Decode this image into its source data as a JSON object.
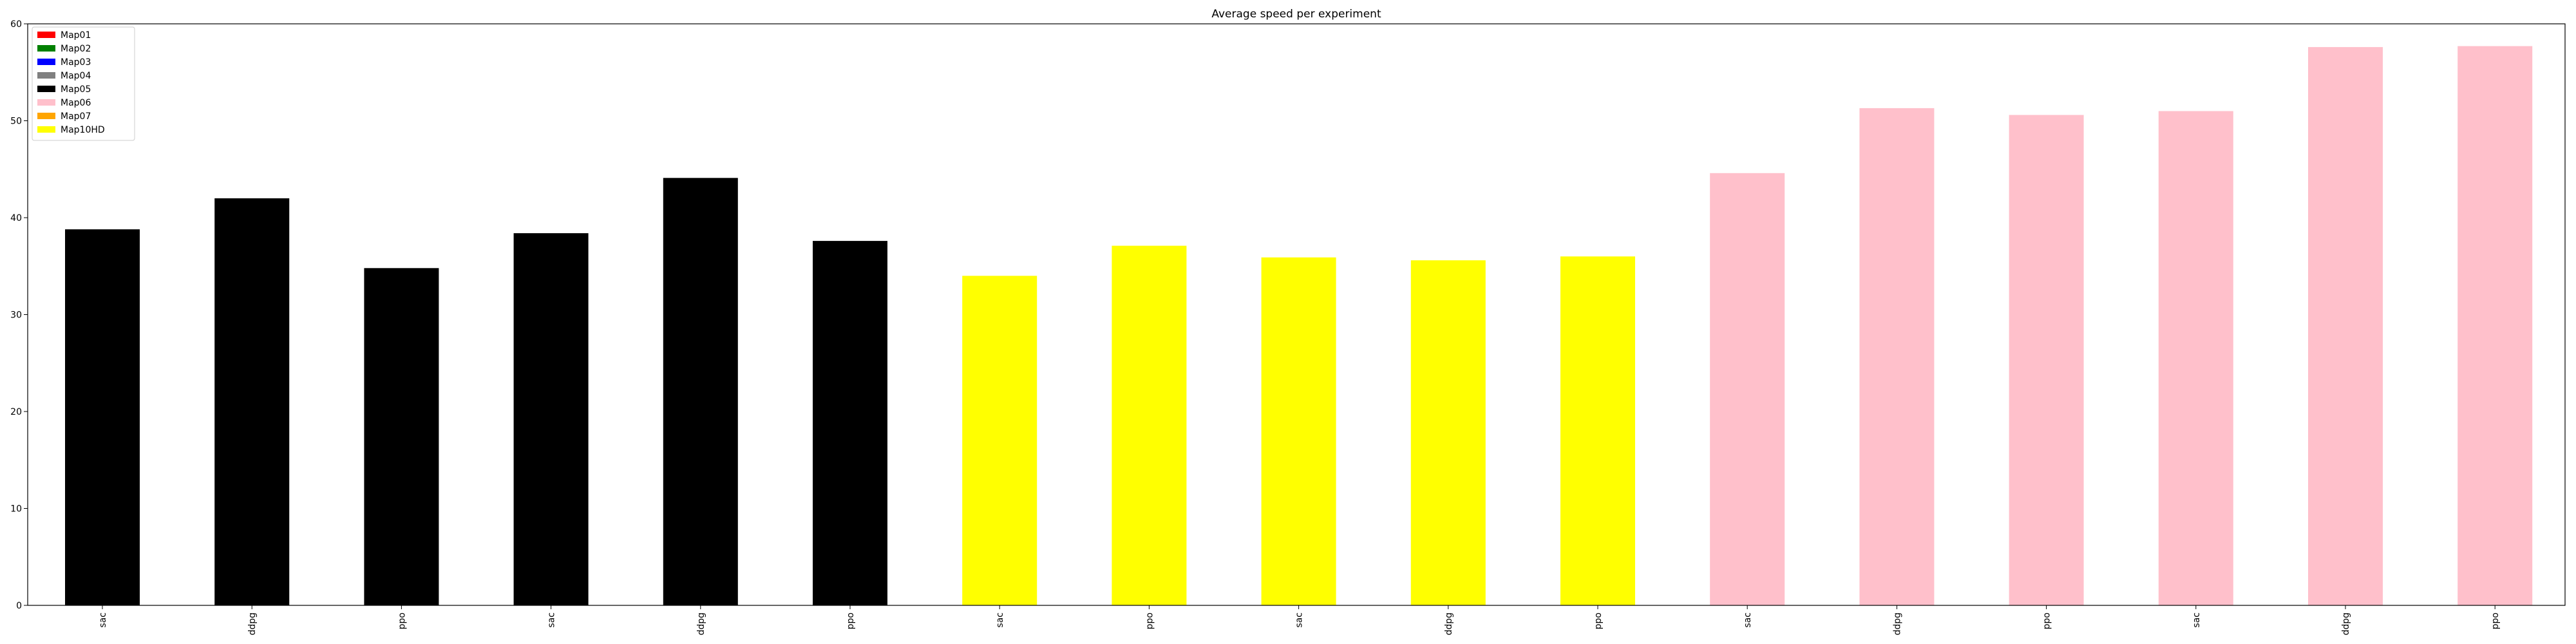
{
  "chart_data": {
    "type": "bar",
    "title": "Average speed per experiment",
    "xlabel": "",
    "ylabel": "",
    "ylim": [
      0,
      60
    ],
    "yticks": [
      0,
      10,
      20,
      30,
      40,
      50,
      60
    ],
    "grid": false,
    "legend_position": "top-left",
    "legend": [
      {
        "label": "Map01",
        "color": "#ff0000"
      },
      {
        "label": "Map02",
        "color": "#008000"
      },
      {
        "label": "Map03",
        "color": "#0000ff"
      },
      {
        "label": "Map04",
        "color": "#808080"
      },
      {
        "label": "Map05",
        "color": "#000000"
      },
      {
        "label": "Map06",
        "color": "#ffc0cb"
      },
      {
        "label": "Map07",
        "color": "#ffa500"
      },
      {
        "label": "Map10HD",
        "color": "#ffff00"
      }
    ],
    "categories": [
      "sac",
      "ddpg",
      "ppo",
      "sac",
      "ddpg",
      "ppo",
      "sac",
      "ppo",
      "sac",
      "ddpg",
      "ppo",
      "sac",
      "ddpg",
      "ppo",
      "sac",
      "ddpg",
      "ppo"
    ],
    "values": [
      38.8,
      42.0,
      34.8,
      38.4,
      44.1,
      37.6,
      34.0,
      37.1,
      35.9,
      35.6,
      36.0,
      44.6,
      51.3,
      50.6,
      51.0,
      57.6,
      57.7
    ],
    "bar_colors": [
      "#000000",
      "#000000",
      "#000000",
      "#000000",
      "#000000",
      "#000000",
      "#ffff00",
      "#ffff00",
      "#ffff00",
      "#ffff00",
      "#ffff00",
      "#ffc0cb",
      "#ffc0cb",
      "#ffc0cb",
      "#ffc0cb",
      "#ffc0cb",
      "#ffc0cb"
    ]
  }
}
